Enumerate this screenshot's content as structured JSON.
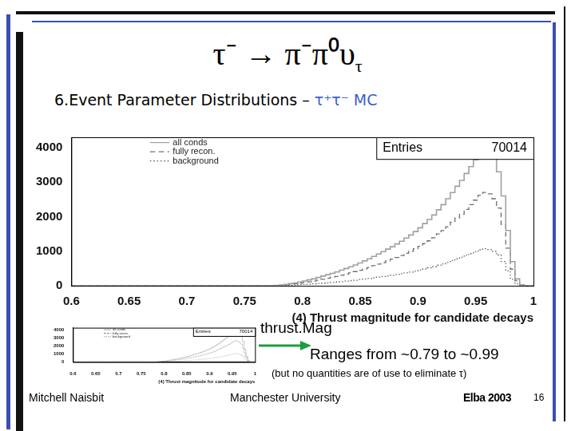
{
  "slide": {
    "title": "τ⁻ → π⁻π⁰υ",
    "title_subscript": "τ",
    "heading": "6.Event Parameter Distributions – ",
    "heading_highlight": "τ⁺τ⁻ MC",
    "note_label": "thrust.Mag",
    "note_text": "Ranges from ~0.79 to ~0.99",
    "note_caveat": "(but no quantities are of use to eliminate τ)",
    "footer": {
      "author": "Mitchell Naisbit",
      "institution": "Manchester University",
      "event": "Elba 2003",
      "page": "16"
    }
  },
  "chart_data": {
    "type": "histogram",
    "x_label": "(4) Thrust magnitude for candidate decays",
    "bins": [
      0.6,
      0.604,
      0.608,
      0.612,
      0.616,
      0.62,
      0.624,
      0.628,
      0.632,
      0.636,
      0.64,
      0.644,
      0.648,
      0.652,
      0.656,
      0.66,
      0.664,
      0.668,
      0.672,
      0.676,
      0.68,
      0.684,
      0.688,
      0.692,
      0.696,
      0.7,
      0.704,
      0.708,
      0.712,
      0.716,
      0.72,
      0.724,
      0.728,
      0.732,
      0.736,
      0.74,
      0.744,
      0.748,
      0.752,
      0.756,
      0.76,
      0.764,
      0.768,
      0.772,
      0.776,
      0.78,
      0.784,
      0.788,
      0.792,
      0.796,
      0.8,
      0.804,
      0.808,
      0.812,
      0.816,
      0.82,
      0.824,
      0.828,
      0.832,
      0.836,
      0.84,
      0.844,
      0.848,
      0.852,
      0.856,
      0.86,
      0.864,
      0.868,
      0.872,
      0.876,
      0.88,
      0.884,
      0.888,
      0.892,
      0.896,
      0.9,
      0.904,
      0.908,
      0.912,
      0.916,
      0.92,
      0.924,
      0.928,
      0.932,
      0.936,
      0.94,
      0.944,
      0.948,
      0.952,
      0.956,
      0.96,
      0.964,
      0.968,
      0.972,
      0.976,
      0.98,
      0.984,
      0.988,
      0.992,
      0.996,
      1
    ],
    "series": [
      {
        "name": "all conds",
        "color": "#a0a0a0",
        "line_style": "solid",
        "values": [
          0,
          0,
          0,
          0,
          0,
          0,
          0,
          0,
          0,
          0,
          0,
          0,
          0,
          0,
          0,
          0,
          0,
          0,
          0,
          0,
          0,
          0,
          0,
          0,
          0,
          0,
          0,
          0,
          0,
          0,
          0,
          0,
          0,
          0,
          0,
          0,
          0,
          0,
          0,
          0,
          0,
          0,
          0,
          0,
          0,
          10,
          20,
          40,
          60,
          80,
          110,
          140,
          170,
          200,
          240,
          280,
          320,
          360,
          400,
          450,
          500,
          550,
          600,
          660,
          720,
          780,
          850,
          920,
          990,
          1060,
          1130,
          1210,
          1290,
          1380,
          1470,
          1570,
          1680,
          1800,
          1920,
          2050,
          2200,
          2350,
          2520,
          2700,
          2880,
          3050,
          3250,
          3450,
          3650,
          3850,
          3950,
          3900,
          3700,
          3300,
          2600,
          1600,
          700,
          200,
          30,
          0
        ]
      },
      {
        "name": "fully recon.",
        "color": "#707070",
        "line_style": "dashed",
        "values": [
          0,
          0,
          0,
          0,
          0,
          0,
          0,
          0,
          0,
          0,
          0,
          0,
          0,
          0,
          0,
          0,
          0,
          0,
          0,
          0,
          0,
          0,
          0,
          0,
          0,
          0,
          0,
          0,
          0,
          0,
          0,
          0,
          0,
          0,
          0,
          0,
          0,
          0,
          0,
          0,
          0,
          0,
          0,
          0,
          0,
          5,
          12,
          25,
          40,
          55,
          75,
          95,
          115,
          135,
          160,
          190,
          215,
          245,
          270,
          305,
          340,
          375,
          410,
          450,
          490,
          530,
          580,
          625,
          670,
          720,
          770,
          820,
          875,
          940,
          1000,
          1070,
          1140,
          1220,
          1300,
          1390,
          1500,
          1600,
          1710,
          1840,
          1960,
          2070,
          2210,
          2350,
          2480,
          2620,
          2700,
          2660,
          2520,
          2250,
          1770,
          1090,
          480,
          140,
          20,
          0
        ]
      },
      {
        "name": "background",
        "color": "#606060",
        "line_style": "dotted",
        "values": [
          0,
          0,
          0,
          0,
          0,
          0,
          0,
          0,
          0,
          0,
          0,
          0,
          0,
          0,
          0,
          0,
          0,
          0,
          0,
          0,
          0,
          0,
          0,
          0,
          0,
          0,
          0,
          0,
          0,
          0,
          0,
          0,
          0,
          0,
          0,
          0,
          0,
          0,
          0,
          0,
          0,
          0,
          0,
          0,
          0,
          3,
          5,
          10,
          15,
          20,
          30,
          38,
          45,
          55,
          65,
          75,
          85,
          95,
          110,
          120,
          135,
          150,
          160,
          180,
          195,
          210,
          230,
          250,
          270,
          285,
          305,
          325,
          350,
          375,
          395,
          425,
          455,
          485,
          520,
          555,
          595,
          635,
          680,
          730,
          780,
          825,
          880,
          930,
          985,
          1040,
          1070,
          1050,
          1000,
          890,
          700,
          430,
          190,
          55,
          8,
          0
        ]
      }
    ],
    "xlim": [
      0.6,
      1
    ],
    "xticks": [
      0.6,
      0.65,
      0.7,
      0.75,
      0.8,
      0.85,
      0.9,
      0.95,
      1
    ],
    "ylim": [
      0,
      4300
    ],
    "yticks": [
      0,
      1000,
      2000,
      3000,
      4000
    ],
    "grid": false,
    "legend": "top-left",
    "stats": {
      "label": "Entries",
      "value": 70014
    }
  }
}
